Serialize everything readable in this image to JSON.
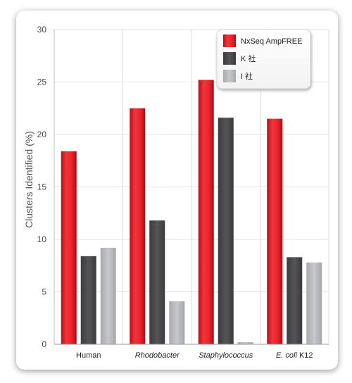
{
  "chart_data": {
    "type": "bar",
    "categories": [
      "Human",
      "Rhodobacter",
      "Staphylococcus",
      "E. coli K12"
    ],
    "category_italic": [
      [
        {
          "text": "Human",
          "italic": false
        }
      ],
      [
        {
          "text": "Rhodobacter",
          "italic": true
        }
      ],
      [
        {
          "text": "Staphylococcus",
          "italic": true
        }
      ],
      [
        {
          "text": "E. coli",
          "italic": true
        },
        {
          "text": " K12",
          "italic": false
        }
      ]
    ],
    "series": [
      {
        "name": "NxSeq AmpFREE",
        "values": [
          18.4,
          22.5,
          25.2,
          21.5
        ],
        "color": "#e8222b"
      },
      {
        "name": "K 社",
        "values": [
          8.4,
          11.8,
          21.6,
          8.3
        ],
        "color": "#4d4d4f"
      },
      {
        "name": "I 社",
        "values": [
          9.2,
          4.1,
          0.2,
          7.8
        ],
        "color": "#bcbdc0"
      }
    ],
    "ylabel": "Clusters Identified (%)",
    "xlabel": "",
    "title": "",
    "ylim": [
      0,
      30
    ],
    "yticks": [
      0,
      5,
      10,
      15,
      20,
      25,
      30
    ],
    "grid": true,
    "legend_position": "top-right"
  }
}
